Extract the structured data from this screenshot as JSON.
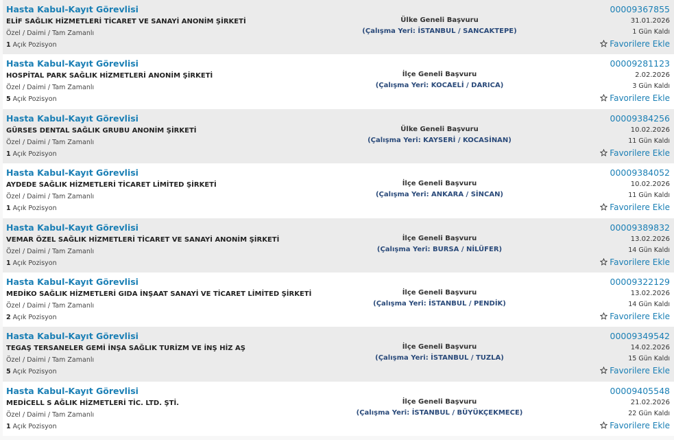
{
  "listings": [
    {
      "title": "Hasta Kabul-Kayıt Görevlisi",
      "company": "ELİF SAĞLIK HİZMETLERİ TİCARET VE SANAYİ ANONİM ŞİRKETİ",
      "employment": "Özel / Daimi / Tam Zamanlı",
      "count": "1",
      "positions_label": "Açık Pozisyon",
      "scope": "Ülke Geneli Başvuru",
      "location": "(Çalışma Yeri: İSTANBUL / SANCAKTEPE)",
      "id": "00009367855",
      "date": "31.01.2026",
      "remaining": "1 Gün Kaldı",
      "favorite": "Favorilere Ekle"
    },
    {
      "title": "Hasta Kabul-Kayıt Görevlisi",
      "company": "HOSPİTAL PARK SAĞLIK HİZMETLERİ ANONİM ŞİRKETİ",
      "employment": "Özel / Daimi / Tam Zamanlı",
      "count": "5",
      "positions_label": "Açık Pozisyon",
      "scope": "İlçe Geneli Başvuru",
      "location": "(Çalışma Yeri: KOCAELİ / DARICA)",
      "id": "00009281123",
      "date": "2.02.2026",
      "remaining": "3 Gün Kaldı",
      "favorite": "Favorilere Ekle"
    },
    {
      "title": "Hasta Kabul-Kayıt Görevlisi",
      "company": "GÜRSES DENTAL SAĞLIK GRUBU ANONİM ŞİRKETİ",
      "employment": "Özel / Daimi / Tam Zamanlı",
      "count": "1",
      "positions_label": "Açık Pozisyon",
      "scope": "Ülke Geneli Başvuru",
      "location": "(Çalışma Yeri: KAYSERİ / KOCASİNAN)",
      "id": "00009384256",
      "date": "10.02.2026",
      "remaining": "11 Gün Kaldı",
      "favorite": "Favorilere Ekle"
    },
    {
      "title": "Hasta Kabul-Kayıt Görevlisi",
      "company": "AYDEDE SAĞLIK HİZMETLERİ TİCARET LİMİTED ŞİRKETİ",
      "employment": "Özel / Daimi / Tam Zamanlı",
      "count": "1",
      "positions_label": "Açık Pozisyon",
      "scope": "İlçe Geneli Başvuru",
      "location": "(Çalışma Yeri: ANKARA / SİNCAN)",
      "id": "00009384052",
      "date": "10.02.2026",
      "remaining": "11 Gün Kaldı",
      "favorite": "Favorilere Ekle"
    },
    {
      "title": "Hasta Kabul-Kayıt Görevlisi",
      "company": "VEMAR ÖZEL SAĞLIK HİZMETLERİ TİCARET VE SANAYİ ANONİM ŞİRKETİ",
      "employment": "Özel / Daimi / Tam Zamanlı",
      "count": "1",
      "positions_label": "Açık Pozisyon",
      "scope": "İlçe Geneli Başvuru",
      "location": "(Çalışma Yeri: BURSA / NİLÜFER)",
      "id": "00009389832",
      "date": "13.02.2026",
      "remaining": "14 Gün Kaldı",
      "favorite": "Favorilere Ekle"
    },
    {
      "title": "Hasta Kabul-Kayıt Görevlisi",
      "company": "MEDİKO SAĞLIK HİZMETLERİ GIDA İNŞAAT SANAYİ VE TİCARET LİMİTED ŞİRKETİ",
      "employment": "Özel / Daimi / Tam Zamanlı",
      "count": "2",
      "positions_label": "Açık Pozisyon",
      "scope": "İlçe Geneli Başvuru",
      "location": "(Çalışma Yeri: İSTANBUL / PENDİK)",
      "id": "00009322129",
      "date": "13.02.2026",
      "remaining": "14 Gün Kaldı",
      "favorite": "Favorilere Ekle"
    },
    {
      "title": "Hasta Kabul-Kayıt Görevlisi",
      "company": "TEGAŞ TERSANELER GEMİ İNŞA SAĞLIK TURİZM VE İNŞ HİZ AŞ",
      "employment": "Özel / Daimi / Tam Zamanlı",
      "count": "5",
      "positions_label": "Açık Pozisyon",
      "scope": "İlçe Geneli Başvuru",
      "location": "(Çalışma Yeri: İSTANBUL / TUZLA)",
      "id": "00009349542",
      "date": "14.02.2026",
      "remaining": "15 Gün Kaldı",
      "favorite": "Favorilere Ekle"
    },
    {
      "title": "Hasta Kabul-Kayıt Görevlisi",
      "company": "MEDİCELL S AĞLIK HİZMETLERİ TİC. LTD. ŞTİ.",
      "employment": "Özel / Daimi / Tam Zamanlı",
      "count": "1",
      "positions_label": "Açık Pozisyon",
      "scope": "İlçe Geneli Başvuru",
      "location": "(Çalışma Yeri: İSTANBUL / BÜYÜKÇEKMECE)",
      "id": "00009405548",
      "date": "21.02.2026",
      "remaining": "22 Gün Kaldı",
      "favorite": "Favorilere Ekle"
    }
  ]
}
